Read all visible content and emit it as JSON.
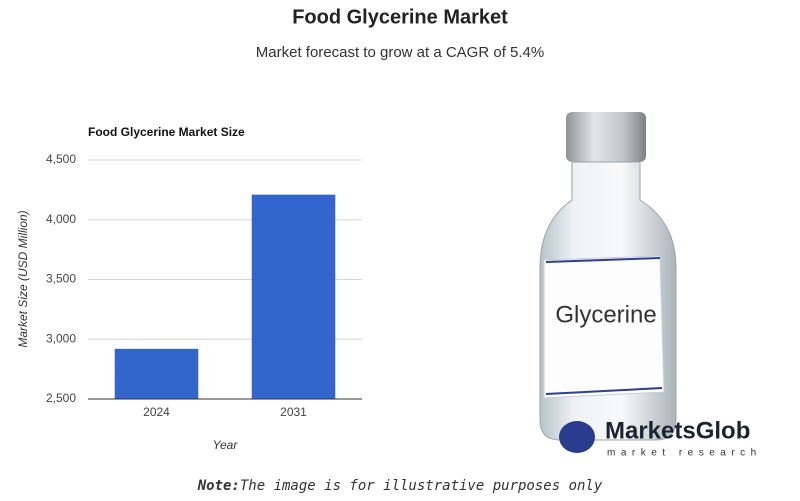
{
  "header": {
    "title": "Food Glycerine Market",
    "subtitle": "Market forecast to grow at a CAGR of 5.4%"
  },
  "chart_data": {
    "type": "bar",
    "title": "Food Glycerine Market Size",
    "x_label": "Year",
    "y_label": "Market Size (USD Million)",
    "categories": [
      "2024",
      "2031"
    ],
    "values": [
      2920,
      4210
    ],
    "color": "#3366cc",
    "ylim": [
      2500,
      4500
    ],
    "yticks": [
      {
        "value": 2500,
        "label": "2,500"
      },
      {
        "value": 3000,
        "label": "3,000"
      },
      {
        "value": 3500,
        "label": "3,500"
      },
      {
        "value": 4000,
        "label": "4,000"
      },
      {
        "value": 4500,
        "label": "4,500"
      }
    ],
    "grid": true
  },
  "image": {
    "bottle_label": "Glycerine",
    "logo_name": "MarketsGlob",
    "logo_tagline": "market research"
  },
  "note": {
    "prefix": "Note:",
    "text": "The image is for illustrative purposes only"
  }
}
